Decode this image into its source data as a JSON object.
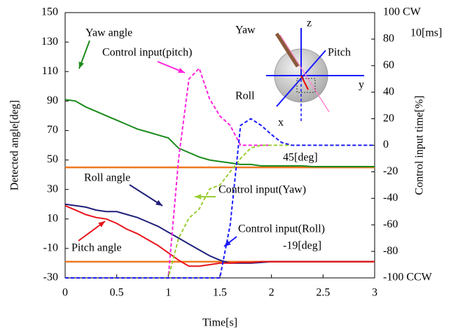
{
  "chart_data": {
    "type": "line",
    "x": [
      0,
      0.1,
      0.2,
      0.3,
      0.4,
      0.5,
      0.6,
      0.7,
      0.8,
      0.9,
      1,
      1.1,
      1.2,
      1.3,
      1.4,
      1.5,
      1.6,
      1.7,
      1.8,
      1.9,
      2,
      2.1,
      2.2,
      2.3,
      2.4,
      2.5,
      2.6,
      2.7,
      2.8,
      2.9,
      3
    ],
    "series": [
      {
        "color": "#1a8a1a",
        "dash": false,
        "values": [
          91,
          90,
          86,
          83,
          80,
          77,
          74,
          71,
          69,
          67,
          65,
          58,
          55,
          52,
          50,
          49,
          48,
          47,
          47,
          46,
          46,
          46,
          46,
          46,
          45.5,
          45.5,
          45.5,
          45.5,
          45.5,
          45.5,
          45.5
        ]
      },
      {
        "color": "#1f1f7a",
        "dash": false,
        "values": [
          20,
          19,
          18,
          16,
          15,
          15,
          13,
          11,
          8,
          5,
          1,
          -3,
          -7,
          -11,
          -15,
          -18,
          -20,
          -20,
          -20,
          -19.5,
          -19,
          -19,
          -19,
          -19,
          -19,
          -19,
          -19,
          -19,
          -19,
          -19,
          -19
        ]
      },
      {
        "color": "#e8141c",
        "dash": false,
        "values": [
          19,
          16,
          13,
          11,
          10,
          7,
          3,
          0,
          -4,
          -8,
          -13,
          -18,
          -22,
          -22,
          -21,
          -20,
          -20,
          -19.5,
          -19.5,
          -19,
          -19,
          -19,
          -19,
          -19,
          -19,
          -19,
          -19,
          -19,
          -19,
          -19,
          -19
        ]
      },
      {
        "color": "#ff22dd",
        "dash": true,
        "axis": "y2",
        "values": [
          -100,
          -100,
          -100,
          -100,
          -100,
          -100,
          -100,
          -100,
          -100,
          -100,
          -100,
          -10,
          50,
          58,
          35,
          22,
          15,
          0,
          0,
          0,
          0,
          null,
          null,
          null,
          null,
          null,
          null,
          null,
          null,
          null,
          null
        ]
      },
      {
        "color": "#9acd32",
        "dash": true,
        "axis": "y2",
        "values": [
          -100,
          -100,
          -100,
          -100,
          -100,
          -100,
          -100,
          -100,
          -100,
          -100,
          -100,
          -70,
          -55,
          -48,
          -33,
          -30,
          -20,
          -10,
          -2,
          0,
          0,
          0,
          0,
          0,
          0,
          0,
          0,
          0,
          0,
          0,
          0
        ]
      },
      {
        "color": "#1a1aff",
        "dash": true,
        "axis": "y2",
        "values": [
          -100,
          -100,
          -100,
          -100,
          -100,
          -100,
          -100,
          -100,
          -100,
          -100,
          -100,
          -100,
          -100,
          -100,
          -100,
          -100,
          -60,
          15,
          20,
          15,
          8,
          2,
          0,
          0,
          0,
          0,
          0,
          0,
          0,
          0,
          0
        ]
      }
    ],
    "ref_lines": [
      {
        "value": 45,
        "label": "45[deg]"
      },
      {
        "value": -19,
        "label": "-19[deg]"
      }
    ],
    "ref_color": "#f07820",
    "xlim": [
      0,
      3
    ],
    "xticks": [
      0,
      0.5,
      1,
      1.5,
      2,
      2.5,
      3
    ],
    "ylim": [
      -30,
      150
    ],
    "yticks": [
      -30,
      -10,
      10,
      30,
      50,
      70,
      90,
      110,
      130,
      150
    ],
    "y2lim": [
      -100,
      100
    ],
    "y2ticks": [
      {
        "value": -100,
        "label": "-100 CCW"
      },
      -80,
      -60,
      -40,
      -20,
      0,
      20,
      40,
      60,
      80,
      {
        "value": 100,
        "label": "100 CW"
      }
    ],
    "xlabel": "Time[s]",
    "ylabel": "Detected angle[deg]",
    "y2label": "Control input time[%]",
    "annotations": [
      "Yaw angle",
      "Control input(pitch)",
      "Roll angle",
      "Control input(Yaw)",
      "Control input(Roll)",
      "Pitch angle",
      "10[ms]"
    ]
  },
  "inset": {
    "labels": [
      "Yaw",
      "z",
      "Pitch",
      "y",
      "Roll",
      "x"
    ]
  }
}
